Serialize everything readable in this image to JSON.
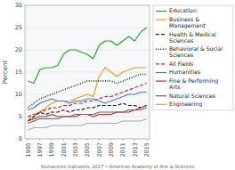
{
  "chart_data": {
    "type": "line",
    "y_label": "Percent",
    "annotations": [
      "Humanities Indicators, 2017  •  American Academy of Arts & Sciences"
    ],
    "x": [
      1995,
      1996,
      1997,
      1998,
      1999,
      2000,
      2001,
      2002,
      2003,
      2004,
      2005,
      2006,
      2007,
      2008,
      2009,
      2010,
      2011,
      2012,
      2013,
      2014,
      2015
    ],
    "xlim": [
      1994.5,
      2015.5
    ],
    "xticks": [
      1995,
      1997,
      1999,
      2001,
      2003,
      2005,
      2007,
      2009,
      2011,
      2013,
      2015
    ],
    "ylim": [
      0,
      30
    ],
    "yticks": [
      0,
      5,
      10,
      15,
      20,
      25,
      30
    ],
    "grid": "y",
    "legend": "right",
    "series": [
      {
        "name": "Education",
        "color": "#22aa22",
        "line_style": "solid",
        "values": [
          13,
          12.5,
          15.5,
          16,
          16,
          16.5,
          19,
          20,
          20,
          19.5,
          19,
          18,
          21,
          22,
          22,
          21,
          22,
          23,
          22,
          24,
          25
        ]
      },
      {
        "name": "Business &\nManagement",
        "color": "#e8a020",
        "line_style": "solid",
        "values": [
          4.5,
          5,
          6,
          7,
          8,
          8.5,
          8.5,
          8.5,
          9,
          9.5,
          10,
          9.5,
          14,
          16,
          15,
          14,
          15,
          15.5,
          16,
          16,
          16
        ]
      },
      {
        "name": "Health & Medical\nSciences",
        "color": "#222222",
        "line_style": "dashed",
        "values": [
          4,
          5,
          6,
          5.5,
          6,
          6,
          6.5,
          6,
          6.5,
          6.5,
          7,
          7,
          7.5,
          7.5,
          7.5,
          7.5,
          8,
          7.5,
          7.5,
          7,
          7.5
        ]
      },
      {
        "name": "Behavioral & Social\nSciences",
        "color": "#222222",
        "line_style": "dotted",
        "values": [
          7,
          8,
          9,
          9.5,
          10,
          10.5,
          11,
          11.5,
          12,
          12.5,
          13,
          13,
          13,
          13,
          13,
          12.5,
          13,
          13.5,
          14,
          14.5,
          14.5
        ]
      },
      {
        "name": "All Fields",
        "color": "#cc2222",
        "line_style": "dashed",
        "values": [
          5,
          5.5,
          6,
          6.5,
          7,
          7,
          7.5,
          7.5,
          8,
          8,
          8.5,
          8.5,
          9,
          9.5,
          9.5,
          10,
          10.5,
          11,
          11.5,
          12,
          12.5
        ]
      },
      {
        "name": "Humanities",
        "color": "#4477dd",
        "line_style": "solid",
        "values": [
          6.5,
          7,
          8,
          8.5,
          9,
          8.5,
          8.5,
          8,
          8.5,
          8.5,
          9,
          9,
          8.5,
          8,
          8.5,
          9,
          9.5,
          10,
          10,
          10.5,
          10.5
        ]
      },
      {
        "name": "Fine & Performing\nArts",
        "color": "#cc2222",
        "line_style": "solid",
        "values": [
          4,
          4.5,
          5,
          5,
          5.5,
          5,
          5,
          5,
          5,
          5.5,
          5.5,
          5,
          5.5,
          5.5,
          5.5,
          6,
          6,
          6,
          6.5,
          7,
          7.5
        ]
      },
      {
        "name": "Natural Sciences",
        "color": "#666666",
        "line_style": "solid",
        "values": [
          3.5,
          4,
          4.5,
          4.5,
          4.5,
          4.5,
          5,
          5,
          5.5,
          5.5,
          5.5,
          5.5,
          6,
          6,
          6,
          6,
          6,
          6.5,
          6.5,
          6.5,
          7
        ]
      },
      {
        "name": "Engineering",
        "color": "#aaaaaa",
        "line_style": "solid",
        "values": [
          2,
          2.5,
          2.5,
          2.5,
          3,
          3,
          3,
          3,
          3,
          3,
          3.5,
          3.5,
          3.5,
          3.5,
          3.5,
          3.5,
          4,
          4,
          4,
          4,
          4.5
        ]
      }
    ]
  }
}
